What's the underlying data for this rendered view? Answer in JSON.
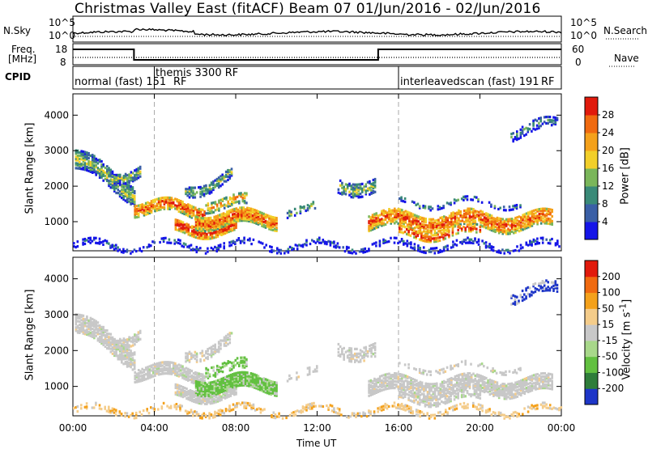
{
  "header": {
    "title_left": "Christmas Valley East (fitACF)",
    "title_beam": "Beam 07",
    "title_dates": "01/Jun/2016 - 02/Jun/2016"
  },
  "noise_panel": {
    "left_label": "N.Sky",
    "right_label": "N.Search",
    "left_ticks": [
      "10^5",
      "10^0"
    ],
    "right_ticks": [
      "10^5",
      "10^0"
    ]
  },
  "freq_panel": {
    "left_label_line1": "Freq.",
    "left_label_line2": "[MHz]",
    "left_ticks": [
      "18",
      "8"
    ],
    "right_label": "Nave",
    "right_ticks": [
      "60",
      "0"
    ]
  },
  "cpid_panel": {
    "label": "CPID",
    "segments": [
      "normal (fast) 151",
      "themis 3300 RF",
      "RF",
      "interleavedscan (fast) 191",
      "RF"
    ]
  },
  "chart_data": [
    {
      "type": "heatmap",
      "name": "power",
      "ylabel": "Slant Range [km]",
      "yticks": [
        1000,
        2000,
        3000,
        4000
      ],
      "ylim": [
        180,
        4600
      ],
      "colorbar_label": "Power [dB]",
      "colorbar_ticks": [
        4,
        8,
        12,
        16,
        20,
        24,
        28
      ],
      "colorbar_range": [
        0,
        32
      ],
      "colors": [
        "#1515e8",
        "#3a5fa6",
        "#3a8a78",
        "#7ab65a",
        "#f2cf2a",
        "#f4a11b",
        "#f06a10",
        "#e11a0c"
      ]
    },
    {
      "type": "heatmap",
      "name": "velocity",
      "ylabel": "Slant Range [km]",
      "yticks": [
        1000,
        2000,
        3000,
        4000
      ],
      "ylim": [
        180,
        4600
      ],
      "colorbar_label": "Velocity [m s^-1]",
      "colorbar_ticks": [
        200,
        100,
        50,
        15,
        -15,
        -50,
        -100,
        -200
      ],
      "colors": [
        "#1e36c8",
        "#2f7d3a",
        "#62c040",
        "#a8d88a",
        "#c8c8c8",
        "#f4cc8a",
        "#f4a11b",
        "#f06a10",
        "#e11a0c"
      ]
    }
  ],
  "xaxis": {
    "label": "Time UT",
    "ticks": [
      "00:00",
      "04:00",
      "08:00",
      "12:00",
      "16:00",
      "20:00",
      "00:00"
    ]
  }
}
